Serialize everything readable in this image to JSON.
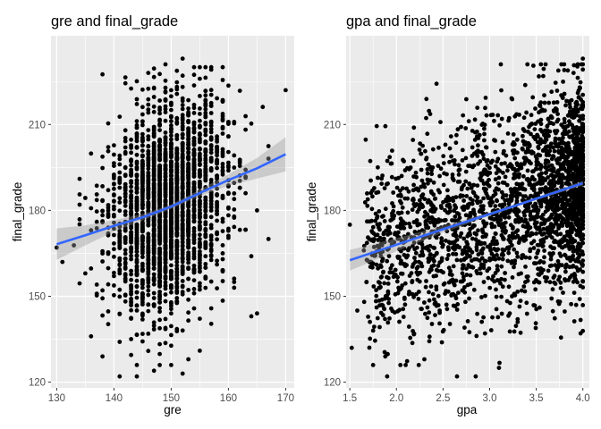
{
  "colors": {
    "panel_bg": "#ebebeb",
    "grid_major": "#ffffff",
    "point": "#000000",
    "smooth_line": "#3366ff",
    "ribbon": "#999999"
  },
  "chart_data": [
    {
      "type": "scatter",
      "title": "gre  and  final_grade",
      "xlabel": "gre",
      "ylabel": "final_grade",
      "xlim": [
        129,
        171.5
      ],
      "ylim": [
        118,
        241
      ],
      "xticks": [
        130,
        140,
        150,
        160,
        170
      ],
      "yticks": [
        120,
        150,
        180,
        210
      ],
      "grid": true,
      "n_points_approx": 2500,
      "point_cloud": {
        "x_mean": 149.5,
        "x_sd": 5.0,
        "y_mean": 183,
        "y_sd": 17,
        "x_range": [
          130,
          170
        ],
        "y_range": [
          122,
          232
        ]
      },
      "outliers": [
        {
          "x": 130,
          "y": 167
        },
        {
          "x": 131,
          "y": 162
        },
        {
          "x": 134,
          "y": 182
        },
        {
          "x": 135,
          "y": 158
        },
        {
          "x": 136,
          "y": 136
        },
        {
          "x": 138,
          "y": 129
        },
        {
          "x": 141,
          "y": 122
        },
        {
          "x": 144,
          "y": 122
        },
        {
          "x": 147,
          "y": 124
        },
        {
          "x": 152,
          "y": 123
        },
        {
          "x": 153,
          "y": 128
        },
        {
          "x": 155,
          "y": 131
        },
        {
          "x": 152,
          "y": 233
        },
        {
          "x": 149,
          "y": 231
        },
        {
          "x": 155,
          "y": 230
        },
        {
          "x": 146,
          "y": 228
        },
        {
          "x": 170,
          "y": 222
        },
        {
          "x": 164,
          "y": 164
        },
        {
          "x": 167,
          "y": 170
        },
        {
          "x": 165,
          "y": 144
        },
        {
          "x": 164,
          "y": 143
        },
        {
          "x": 161,
          "y": 155
        },
        {
          "x": 163,
          "y": 186
        },
        {
          "x": 165,
          "y": 180
        }
      ],
      "smooth": {
        "x": [
          130,
          135,
          140,
          145,
          150,
          155,
          160,
          165,
          170
        ],
        "y": [
          168.2,
          171.3,
          174.6,
          177.6,
          181.3,
          186.1,
          190.6,
          194.7,
          199.6
        ],
        "ci_half_width": [
          5.5,
          3.5,
          2.0,
          1.1,
          0.8,
          1.1,
          2.0,
          3.6,
          6.0
        ]
      }
    },
    {
      "type": "scatter",
      "title": "gpa  and  final_grade",
      "xlabel": "gpa",
      "ylabel": "final_grade",
      "xlim": [
        1.46,
        4.07
      ],
      "ylim": [
        118,
        241
      ],
      "xticks": [
        "1.5",
        "2.0",
        "2.5",
        "3.0",
        "3.5",
        "4.0"
      ],
      "yticks": [
        120,
        150,
        180,
        210
      ],
      "grid": true,
      "n_points_approx": 2500,
      "point_cloud": {
        "x_mode": 4.0,
        "x_min": 1.5,
        "y_mean": 181,
        "y_sd": 17,
        "y_range": [
          122,
          233
        ]
      },
      "outliers": [
        {
          "x": 1.5,
          "y": 175
        },
        {
          "x": 1.52,
          "y": 132
        },
        {
          "x": 1.58,
          "y": 145
        },
        {
          "x": 1.65,
          "y": 166
        },
        {
          "x": 1.75,
          "y": 138
        },
        {
          "x": 1.8,
          "y": 195
        },
        {
          "x": 1.88,
          "y": 129
        },
        {
          "x": 1.9,
          "y": 122
        },
        {
          "x": 1.95,
          "y": 168
        },
        {
          "x": 2.05,
          "y": 185
        },
        {
          "x": 2.3,
          "y": 128
        },
        {
          "x": 2.65,
          "y": 122
        },
        {
          "x": 2.85,
          "y": 122
        },
        {
          "x": 2.95,
          "y": 137
        },
        {
          "x": 3.1,
          "y": 125
        },
        {
          "x": 3.3,
          "y": 142
        },
        {
          "x": 3.55,
          "y": 231
        },
        {
          "x": 3.6,
          "y": 231
        },
        {
          "x": 3.8,
          "y": 229
        },
        {
          "x": 4.0,
          "y": 233
        },
        {
          "x": 3.9,
          "y": 228
        }
      ],
      "smooth": {
        "x": [
          1.5,
          2.0,
          2.5,
          3.0,
          3.5,
          4.0
        ],
        "y": [
          162.6,
          168.0,
          173.4,
          178.7,
          184.1,
          189.5
        ],
        "ci_half_width": [
          3.6,
          2.3,
          1.2,
          0.6,
          0.5,
          0.8
        ]
      }
    }
  ]
}
